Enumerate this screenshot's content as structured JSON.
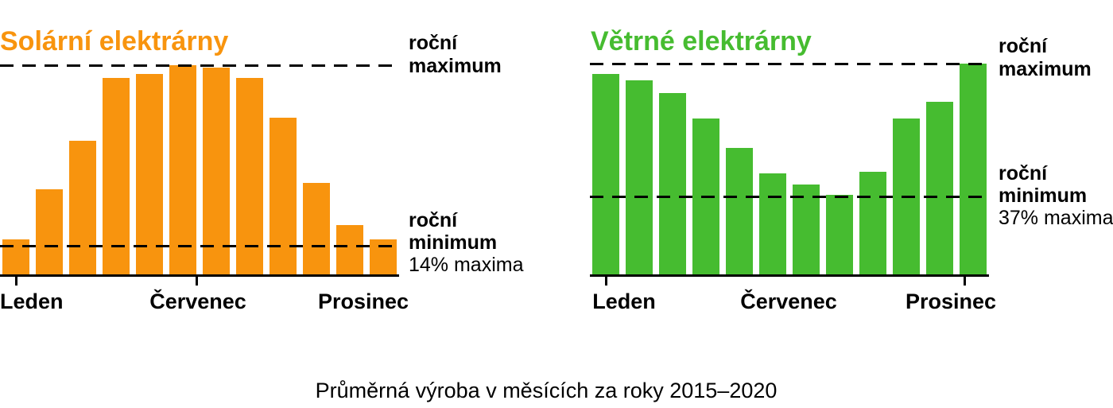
{
  "caption": "Průměrná výroba v měsících za roky 2015–2020",
  "chart_data": [
    {
      "id": "solar",
      "type": "bar",
      "title": "Solární elektrárny",
      "color": "#F8940E",
      "unit": "percent of annual maximum",
      "categories": [
        "1",
        "2",
        "3",
        "4",
        "5",
        "6",
        "7",
        "8",
        "9",
        "10",
        "11",
        "12"
      ],
      "values": [
        17,
        41,
        64,
        94,
        96,
        100,
        99,
        94,
        75,
        44,
        24,
        17
      ],
      "x_tick_labels": [
        "Leden",
        "Červenec",
        "Prosinec"
      ],
      "ylim": [
        0,
        100
      ],
      "grid": false,
      "annotations": {
        "max_line": {
          "value": 100,
          "style": "dashed",
          "label_lines": [
            "roční",
            "maximum"
          ]
        },
        "min_line": {
          "value": 14,
          "style": "dashed",
          "label_lines": [
            "roční",
            "minimum"
          ],
          "pct_label": "14% maxima"
        }
      }
    },
    {
      "id": "wind",
      "type": "bar",
      "title": "Větrné elektrárny",
      "color": "#46BC30",
      "unit": "percent of annual maximum",
      "categories": [
        "1",
        "2",
        "3",
        "4",
        "5",
        "6",
        "7",
        "8",
        "9",
        "10",
        "11",
        "12"
      ],
      "values": [
        95,
        92,
        86,
        74,
        60,
        48,
        43,
        38,
        49,
        74,
        82,
        100
      ],
      "x_tick_labels": [
        "Leden",
        "Červenec",
        "Prosinec"
      ],
      "ylim": [
        0,
        100
      ],
      "grid": false,
      "annotations": {
        "max_line": {
          "value": 100,
          "style": "dashed",
          "label_lines": [
            "roční",
            "maximum"
          ]
        },
        "min_line": {
          "value": 37,
          "style": "dashed",
          "label_lines": [
            "roční",
            "minimum"
          ],
          "pct_label": "37% maxima"
        }
      }
    }
  ]
}
